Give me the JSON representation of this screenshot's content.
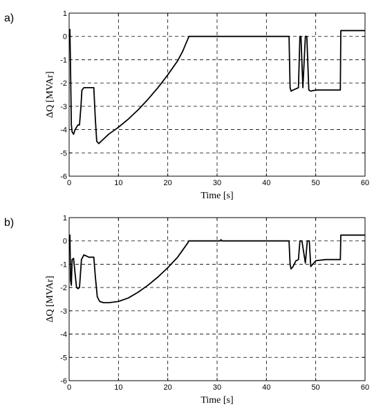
{
  "chart_data": [
    {
      "panel_label": "a)",
      "type": "line",
      "xlabel": "Time [s]",
      "ylabel": "ΔQ [MVAr]",
      "xlim": [
        0,
        60
      ],
      "ylim": [
        -6,
        1
      ],
      "xticks": [
        "0",
        "10",
        "20",
        "30",
        "40",
        "50",
        "60"
      ],
      "yticks": [
        "1",
        "0",
        "-1",
        "-2",
        "-3",
        "-4",
        "-5",
        "-6"
      ],
      "grid": true,
      "series": [
        {
          "x": [
            0,
            0.15,
            0.3,
            0.45,
            0.6,
            0.9,
            1.2,
            1.5,
            1.8,
            2.1,
            2.4,
            2.6,
            3.0,
            4.0,
            5.0,
            5.3,
            5.6,
            6.0,
            7.0,
            8.0,
            10.0,
            12.0,
            14.0,
            16.0,
            18.0,
            20.0,
            22.0,
            23.0,
            23.5,
            24.0,
            24.3,
            30.0,
            40.0,
            44.6,
            44.8,
            45.0,
            45.4,
            46.5,
            46.8,
            47.0,
            47.4,
            47.9,
            48.2,
            48.6,
            49.0,
            50.0,
            52.0,
            55.0,
            55.1,
            60.0
          ],
          "y": [
            0,
            0.3,
            -1.5,
            -3.8,
            -4.1,
            -4.2,
            -4.0,
            -3.9,
            -3.8,
            -3.8,
            -3.0,
            -2.3,
            -2.2,
            -2.2,
            -2.2,
            -3.5,
            -4.5,
            -4.6,
            -4.4,
            -4.2,
            -3.9,
            -3.55,
            -3.15,
            -2.7,
            -2.2,
            -1.65,
            -1.05,
            -0.65,
            -0.4,
            -0.15,
            0.0,
            0.0,
            0.0,
            0.0,
            -2.2,
            -2.35,
            -2.3,
            -2.2,
            0.0,
            0.0,
            -2.2,
            0.0,
            0.0,
            -2.3,
            -2.35,
            -2.3,
            -2.3,
            -2.3,
            0.25,
            0.25
          ]
        }
      ]
    },
    {
      "panel_label": "b)",
      "type": "line",
      "xlabel": "Time [s]",
      "ylabel": "ΔQ [MVAr]",
      "xlim": [
        0,
        60
      ],
      "ylim": [
        -6,
        1
      ],
      "xticks": [
        "0",
        "10",
        "20",
        "30",
        "40",
        "50",
        "60"
      ],
      "yticks": [
        "1",
        "0",
        "-1",
        "-2",
        "-3",
        "-4",
        "-5",
        "-6"
      ],
      "grid": true,
      "series": [
        {
          "x": [
            0,
            0.15,
            0.3,
            0.45,
            0.6,
            0.9,
            1.2,
            1.5,
            1.8,
            2.1,
            2.5,
            3.0,
            3.5,
            4.0,
            5.0,
            5.3,
            5.7,
            6.2,
            7.0,
            8.0,
            10.0,
            12.0,
            14.0,
            16.0,
            18.0,
            20.0,
            22.0,
            23.0,
            24.0,
            24.3,
            30.6,
            30.8,
            31.0,
            40.0,
            44.6,
            44.8,
            45.0,
            45.4,
            46.0,
            46.5,
            46.8,
            47.2,
            47.9,
            48.3,
            48.7,
            49.0,
            50.0,
            52.0,
            55.0,
            55.1,
            60.0
          ],
          "y": [
            0,
            0.25,
            -1.7,
            -1.9,
            -0.8,
            -0.75,
            -1.4,
            -2.0,
            -2.05,
            -2.0,
            -0.8,
            -0.6,
            -0.65,
            -0.7,
            -0.7,
            -1.5,
            -2.4,
            -2.6,
            -2.65,
            -2.65,
            -2.6,
            -2.45,
            -2.2,
            -1.9,
            -1.55,
            -1.15,
            -0.7,
            -0.4,
            -0.1,
            0.0,
            0.0,
            0.05,
            0.0,
            0.0,
            0.0,
            -1.0,
            -1.2,
            -1.1,
            -0.85,
            -0.8,
            0.0,
            0.0,
            -0.95,
            0.0,
            0.0,
            -1.1,
            -0.85,
            -0.8,
            -0.8,
            0.25,
            0.25
          ]
        }
      ]
    }
  ]
}
